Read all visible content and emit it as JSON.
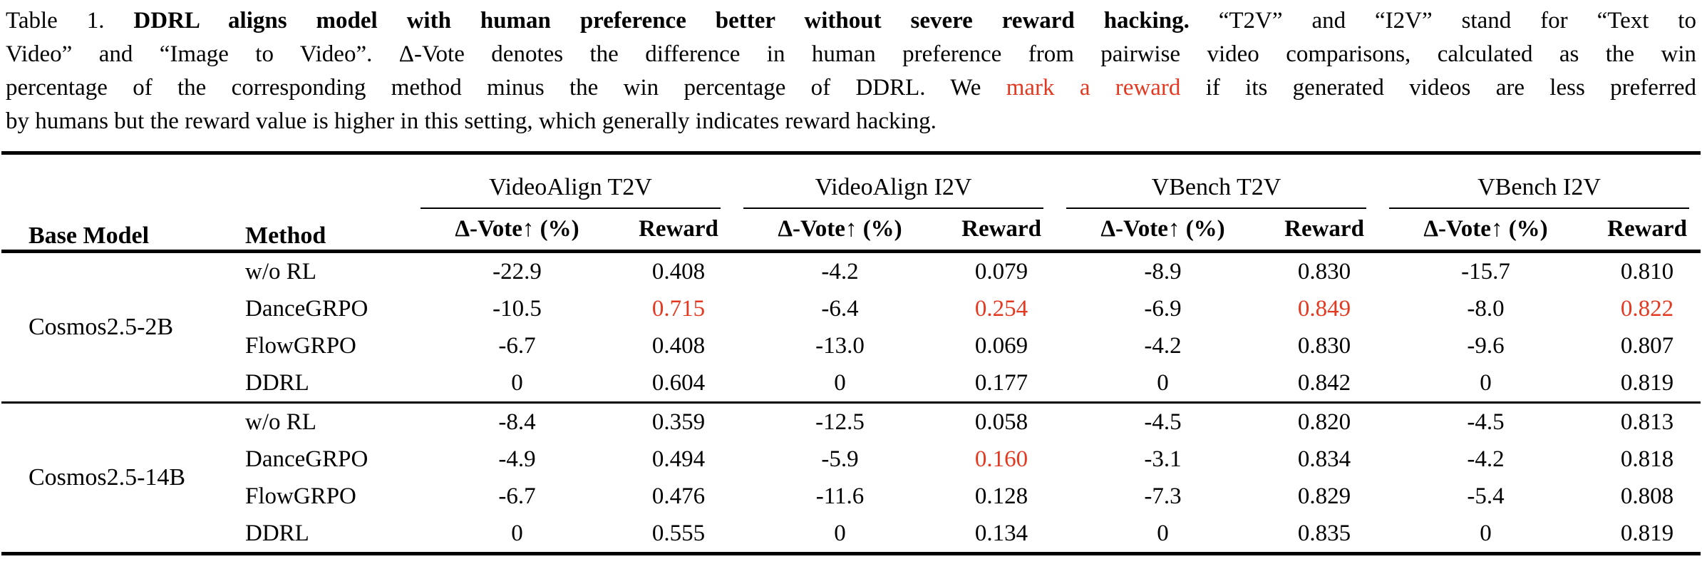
{
  "colors": {
    "accent_red": "#e43921",
    "text": "#000000",
    "background": "#ffffff"
  },
  "caption": {
    "lines": [
      {
        "segments": [
          {
            "text": "Table 1. ",
            "style": "normal"
          },
          {
            "text": "DDRL aligns model with human preference better without severe reward hacking.",
            "style": "bold"
          },
          {
            "text": "  “T2V” and “I2V” stand for “Text to",
            "style": "normal"
          }
        ],
        "last": false
      },
      {
        "segments": [
          {
            "text": "Video” and “Image to Video”. Δ-Vote denotes the difference in human preference from pairwise video comparisons, calculated as the win",
            "style": "normal"
          }
        ],
        "last": false
      },
      {
        "segments": [
          {
            "text": "percentage of the corresponding method minus the win percentage of DDRL. We ",
            "style": "normal"
          },
          {
            "text": "mark a reward",
            "style": "red"
          },
          {
            "text": " if its generated videos are less preferred",
            "style": "normal"
          }
        ],
        "last": false
      },
      {
        "segments": [
          {
            "text": "by humans but the reward value is higher in this setting, which generally indicates reward hacking.",
            "style": "normal"
          }
        ],
        "last": true
      }
    ]
  },
  "table": {
    "header": {
      "base_model": "Base Model",
      "method": "Method",
      "groups": [
        {
          "label": "VideoAlign T2V"
        },
        {
          "label": "VideoAlign I2V"
        },
        {
          "label": "VBench T2V"
        },
        {
          "label": "VBench I2V"
        }
      ],
      "sub_vote": "Δ-Vote↑ (%)",
      "sub_reward": "Reward"
    },
    "groups": [
      {
        "base_model": "Cosmos2.5-2B",
        "rows": [
          {
            "method": "w/o RL",
            "values": [
              {
                "v": "-22.9"
              },
              {
                "v": "0.408"
              },
              {
                "v": "-4.2"
              },
              {
                "v": "0.079"
              },
              {
                "v": "-8.9"
              },
              {
                "v": "0.830"
              },
              {
                "v": "-15.7"
              },
              {
                "v": "0.810"
              }
            ]
          },
          {
            "method": "DanceGRPO",
            "values": [
              {
                "v": "-10.5"
              },
              {
                "v": "0.715",
                "red": true
              },
              {
                "v": "-6.4"
              },
              {
                "v": "0.254",
                "red": true
              },
              {
                "v": "-6.9"
              },
              {
                "v": "0.849",
                "red": true
              },
              {
                "v": "-8.0"
              },
              {
                "v": "0.822",
                "red": true
              }
            ]
          },
          {
            "method": "FlowGRPO",
            "values": [
              {
                "v": "-6.7"
              },
              {
                "v": "0.408"
              },
              {
                "v": "-13.0"
              },
              {
                "v": "0.069"
              },
              {
                "v": "-4.2"
              },
              {
                "v": "0.830"
              },
              {
                "v": "-9.6"
              },
              {
                "v": "0.807"
              }
            ]
          },
          {
            "method": "DDRL",
            "values": [
              {
                "v": "0"
              },
              {
                "v": "0.604"
              },
              {
                "v": "0"
              },
              {
                "v": "0.177"
              },
              {
                "v": "0"
              },
              {
                "v": "0.842"
              },
              {
                "v": "0"
              },
              {
                "v": "0.819"
              }
            ]
          }
        ]
      },
      {
        "base_model": "Cosmos2.5-14B",
        "rows": [
          {
            "method": "w/o RL",
            "values": [
              {
                "v": "-8.4"
              },
              {
                "v": "0.359"
              },
              {
                "v": "-12.5"
              },
              {
                "v": "0.058"
              },
              {
                "v": "-4.5"
              },
              {
                "v": "0.820"
              },
              {
                "v": "-4.5"
              },
              {
                "v": "0.813"
              }
            ]
          },
          {
            "method": "DanceGRPO",
            "values": [
              {
                "v": "-4.9"
              },
              {
                "v": "0.494"
              },
              {
                "v": "-5.9"
              },
              {
                "v": "0.160",
                "red": true
              },
              {
                "v": "-3.1"
              },
              {
                "v": "0.834"
              },
              {
                "v": "-4.2"
              },
              {
                "v": "0.818"
              }
            ]
          },
          {
            "method": "FlowGRPO",
            "values": [
              {
                "v": "-6.7"
              },
              {
                "v": "0.476"
              },
              {
                "v": "-11.6"
              },
              {
                "v": "0.128"
              },
              {
                "v": "-7.3"
              },
              {
                "v": "0.829"
              },
              {
                "v": "-5.4"
              },
              {
                "v": "0.808"
              }
            ]
          },
          {
            "method": "DDRL",
            "values": [
              {
                "v": "0"
              },
              {
                "v": "0.555"
              },
              {
                "v": "0"
              },
              {
                "v": "0.134"
              },
              {
                "v": "0"
              },
              {
                "v": "0.835"
              },
              {
                "v": "0"
              },
              {
                "v": "0.819"
              }
            ]
          }
        ]
      }
    ]
  }
}
